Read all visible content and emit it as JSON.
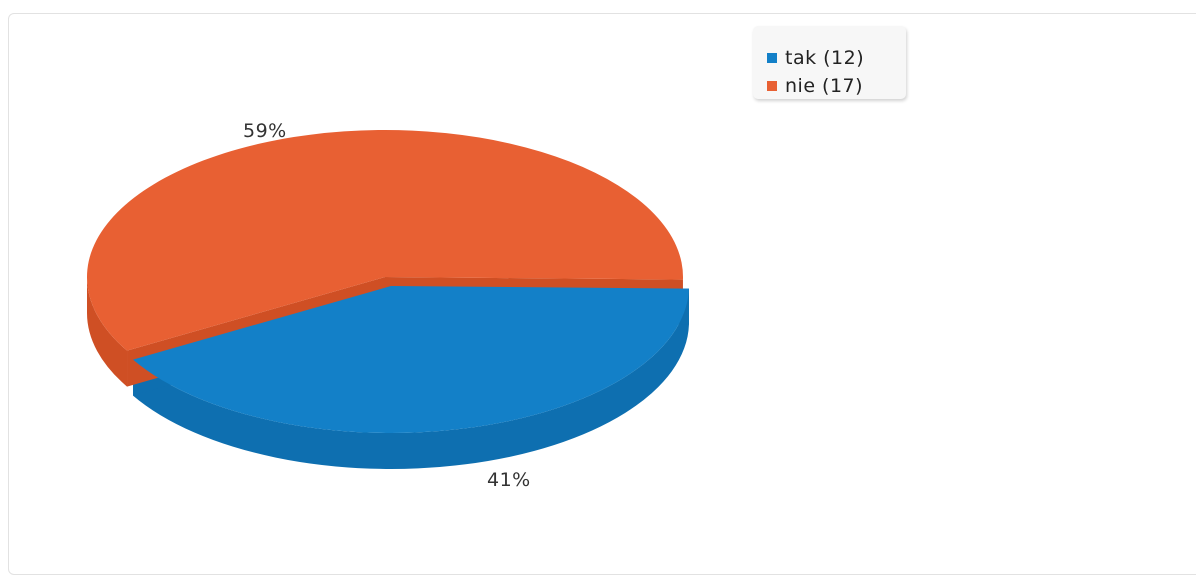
{
  "chart_data": {
    "type": "pie",
    "categories": [
      "tak",
      "nie"
    ],
    "values": [
      12,
      17
    ],
    "percent_labels": [
      "41%",
      "59%"
    ],
    "colors": [
      "#1380c8",
      "#e86033"
    ],
    "side_colors": [
      "#0e6fb0",
      "#cf4f24"
    ],
    "legend": {
      "placement": "top-right",
      "entries": [
        "tak (12)",
        "nie (17)"
      ]
    },
    "style": "3d"
  }
}
